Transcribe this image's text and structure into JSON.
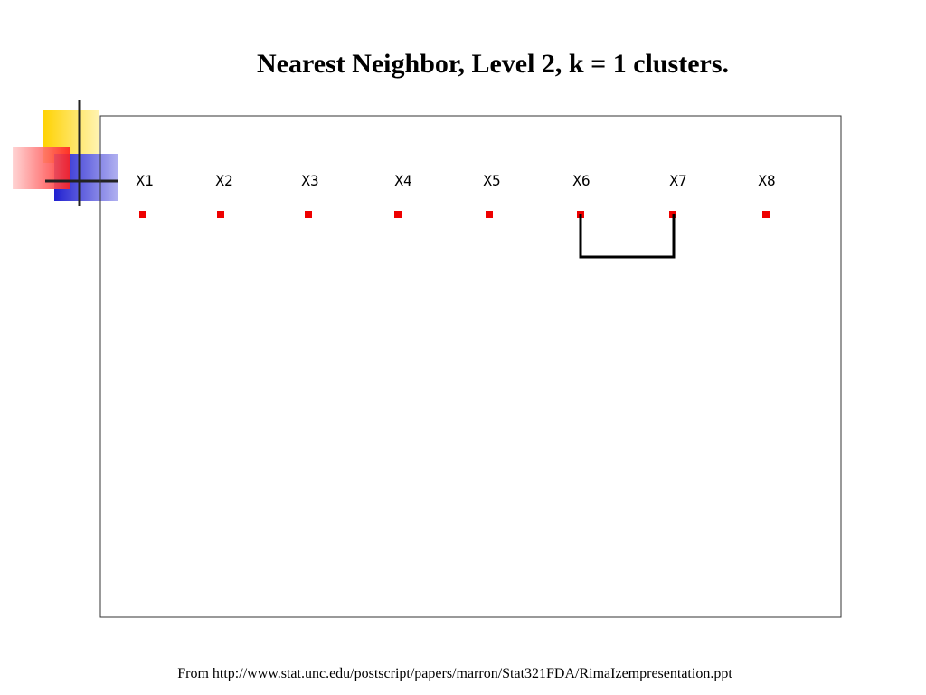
{
  "title": "Nearest Neighbor, Level 2, k = 1 clusters.",
  "nodes": [
    {
      "label": "X1"
    },
    {
      "label": "X2"
    },
    {
      "label": "X3"
    },
    {
      "label": "X4"
    },
    {
      "label": "X5"
    },
    {
      "label": "X6"
    },
    {
      "label": "X7"
    },
    {
      "label": "X8"
    }
  ],
  "footer": "From http://www.stat.unc.edu/postscript/papers/marron/Stat321FDA/RimaIzempresentation.ppt"
}
